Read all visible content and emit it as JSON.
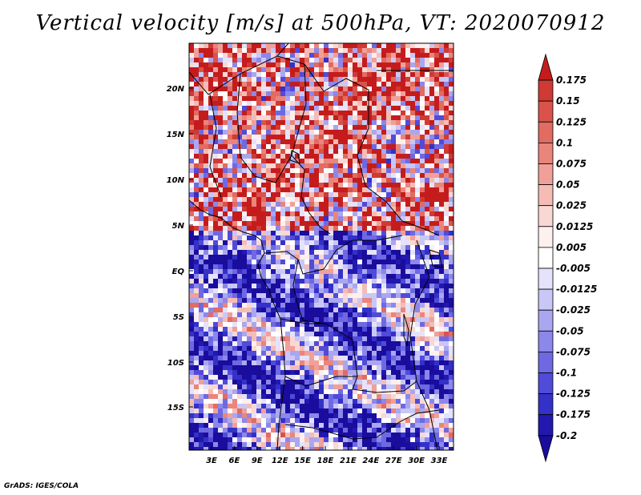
{
  "title": "Vertical velocity [m/s] at 500hPa, VT: 2020070912",
  "footer": "GrADS: IGES/COLA",
  "map": {
    "variable": "Vertical velocity",
    "units": "m/s",
    "level": "500hPa",
    "valid_time": "2020070912",
    "lat_ticks": [
      "20N",
      "15N",
      "10N",
      "5N",
      "EQ",
      "5S",
      "10S",
      "15S"
    ],
    "lon_ticks": [
      "3E",
      "6E",
      "9E",
      "12E",
      "15E",
      "18E",
      "21E",
      "24E",
      "27E",
      "30E",
      "33E"
    ]
  },
  "colorbar": {
    "labels": [
      "0.175",
      "0.15",
      "0.125",
      "0.1",
      "0.075",
      "0.05",
      "0.025",
      "0.0125",
      "0.005",
      "-0.005",
      "-0.0125",
      "-0.025",
      "-0.05",
      "-0.075",
      "-0.1",
      "-0.125",
      "-0.175",
      "-0.2"
    ],
    "colors": [
      "#c41c1c",
      "#cf3a34",
      "#d9534b",
      "#e26b62",
      "#ea857c",
      "#f0a099",
      "#f5bcb6",
      "#f9d8d4",
      "#fdf0ee",
      "#ffffff",
      "#e4e3fb",
      "#c9c7f6",
      "#aaa7f0",
      "#8c87ea",
      "#6e69e3",
      "#504bd8",
      "#3331c8",
      "#2218b0",
      "#1a0c9c"
    ]
  }
}
